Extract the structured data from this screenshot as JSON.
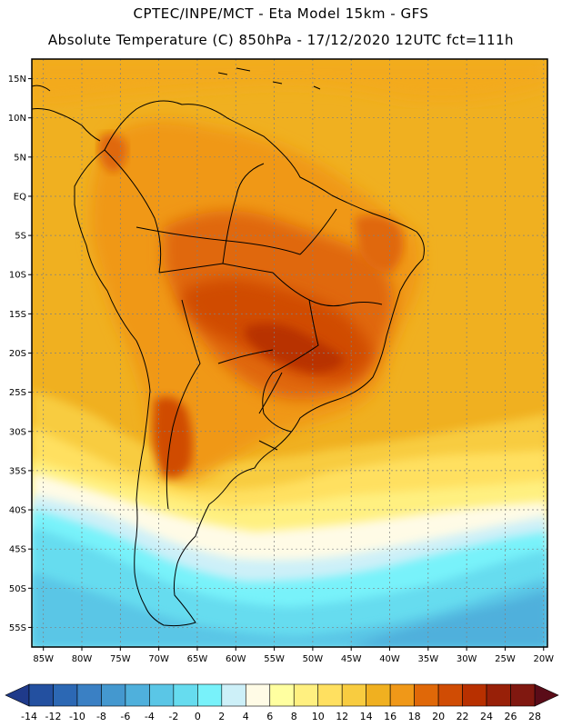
{
  "header": {
    "line1": "CPTEC/INPE/MCT -  Eta Model 15km - GFS",
    "line2": "Absolute Temperature (C) 850hPa - 17/12/2020 12UTC fct=111h"
  },
  "map": {
    "lat_labels": [
      "15N",
      "10N",
      "5N",
      "EQ",
      "5S",
      "10S",
      "15S",
      "20S",
      "25S",
      "30S",
      "35S",
      "40S",
      "45S",
      "50S",
      "55S"
    ],
    "lat_values": [
      15,
      10,
      5,
      0,
      -5,
      -10,
      -15,
      -20,
      -25,
      -30,
      -35,
      -40,
      -45,
      -50,
      -55
    ],
    "lon_labels": [
      "85W",
      "80W",
      "75W",
      "70W",
      "65W",
      "60W",
      "55W",
      "50W",
      "45W",
      "40W",
      "35W",
      "30W",
      "25W",
      "20W"
    ],
    "lon_values": [
      -85,
      -80,
      -75,
      -70,
      -65,
      -60,
      -55,
      -50,
      -45,
      -40,
      -35,
      -30,
      -25,
      -20
    ],
    "lat_range": [
      -57.5,
      17.5
    ],
    "lon_range": [
      -86.5,
      -19.5
    ]
  },
  "colorbar": {
    "ticks": [
      "-14",
      "-12",
      "-10",
      "-8",
      "-6",
      "-4",
      "-2",
      "0",
      "2",
      "4",
      "6",
      "8",
      "10",
      "12",
      "14",
      "16",
      "18",
      "20",
      "22",
      "24",
      "26",
      "28"
    ],
    "colors": [
      "#1f3a8a",
      "#2350a0",
      "#2c68b4",
      "#3a80c4",
      "#4498cf",
      "#4fb0dc",
      "#5ac6e6",
      "#66dcef",
      "#78f2fa",
      "#cdf0f8",
      "#fffbe6",
      "#ffffa0",
      "#fff080",
      "#ffe060",
      "#f8cc40",
      "#f0b020",
      "#f09818",
      "#e06808",
      "#d04c04",
      "#b83000",
      "#982008",
      "#801810",
      "#5a0c18"
    ],
    "unit": "C"
  }
}
